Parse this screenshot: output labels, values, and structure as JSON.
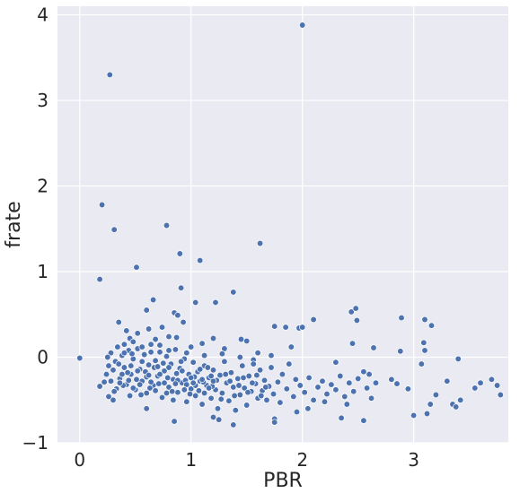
{
  "chart_data": {
    "type": "scatter",
    "title": "",
    "xlabel": "PBR",
    "ylabel": "frate",
    "xlim": [
      -0.2,
      3.85
    ],
    "ylim": [
      -1.0,
      4.1
    ],
    "xticks": [
      0,
      1,
      2,
      3
    ],
    "yticks": [
      -1,
      0,
      1,
      2,
      3,
      4
    ],
    "xtick_labels": [
      "0",
      "1",
      "2",
      "3"
    ],
    "ytick_labels": [
      "−1",
      "0",
      "1",
      "2",
      "3",
      "4"
    ],
    "grid": true,
    "background_color": "#eaeaf2",
    "grid_color": "#ffffff",
    "marker_color": "#4c72b0",
    "marker_edge_color": "#ffffff",
    "series": [
      {
        "points": [
          [
            2.0,
            3.88
          ],
          [
            0.27,
            3.3
          ],
          [
            0.2,
            1.78
          ],
          [
            0.31,
            1.49
          ],
          [
            0.78,
            1.54
          ],
          [
            1.62,
            1.33
          ],
          [
            0.9,
            1.21
          ],
          [
            1.08,
            1.13
          ],
          [
            0.51,
            1.05
          ],
          [
            0.18,
            0.91
          ],
          [
            0.91,
            0.81
          ],
          [
            0.85,
            0.52
          ],
          [
            1.04,
            0.64
          ],
          [
            0.66,
            0.67
          ],
          [
            1.22,
            0.64
          ],
          [
            1.38,
            0.76
          ],
          [
            2.1,
            0.44
          ],
          [
            2.44,
            0.53
          ],
          [
            2.48,
            0.57
          ],
          [
            2.89,
            0.46
          ],
          [
            3.1,
            0.44
          ],
          [
            3.16,
            0.37
          ],
          [
            2.49,
            0.43
          ],
          [
            0.6,
            0.55
          ],
          [
            0.88,
            0.49
          ],
          [
            0.93,
            0.41
          ],
          [
            1.45,
            0.21
          ],
          [
            1.75,
            0.36
          ],
          [
            1.85,
            0.35
          ],
          [
            1.97,
            0.34
          ],
          [
            2.0,
            0.35
          ],
          [
            2.45,
            0.16
          ],
          [
            2.64,
            0.11
          ],
          [
            2.88,
            0.07
          ],
          [
            3.09,
            0.17
          ],
          [
            3.1,
            0.08
          ],
          [
            3.07,
            -0.08
          ],
          [
            3.4,
            -0.02
          ],
          [
            0.0,
            -0.01
          ],
          [
            0.18,
            -0.34
          ],
          [
            0.35,
            0.41
          ],
          [
            0.42,
            0.31
          ],
          [
            0.45,
            0.22
          ],
          [
            0.52,
            0.28
          ],
          [
            0.62,
            0.33
          ],
          [
            0.68,
            0.21
          ],
          [
            0.74,
            0.35
          ],
          [
            0.8,
            0.24
          ],
          [
            0.87,
            0.23
          ],
          [
            1.0,
            0.12
          ],
          [
            1.1,
            0.16
          ],
          [
            1.2,
            0.22
          ],
          [
            1.3,
            0.1
          ],
          [
            1.5,
            0.19
          ],
          [
            1.6,
            0.05
          ],
          [
            1.9,
            0.12
          ],
          [
            2.3,
            -0.06
          ],
          [
            2.55,
            -0.17
          ],
          [
            2.6,
            -0.2
          ],
          [
            2.8,
            -0.26
          ],
          [
            2.85,
            -0.31
          ],
          [
            2.95,
            -0.37
          ],
          [
            3.0,
            -0.68
          ],
          [
            3.12,
            -0.66
          ],
          [
            3.15,
            -0.55
          ],
          [
            3.2,
            -0.44
          ],
          [
            3.3,
            -0.28
          ],
          [
            3.35,
            -0.55
          ],
          [
            3.38,
            -0.58
          ],
          [
            3.42,
            -0.5
          ],
          [
            3.55,
            -0.36
          ],
          [
            3.6,
            -0.3
          ],
          [
            3.7,
            -0.26
          ],
          [
            3.75,
            -0.33
          ],
          [
            3.78,
            -0.44
          ],
          [
            2.62,
            -0.48
          ],
          [
            2.55,
            -0.74
          ],
          [
            2.4,
            -0.55
          ],
          [
            2.35,
            -0.71
          ],
          [
            2.2,
            -0.52
          ],
          [
            2.05,
            -0.6
          ],
          [
            1.95,
            -0.64
          ],
          [
            1.75,
            -0.72
          ],
          [
            1.75,
            -0.76
          ],
          [
            1.38,
            -0.79
          ],
          [
            1.25,
            -0.73
          ],
          [
            1.2,
            -0.7
          ],
          [
            0.85,
            -0.75
          ],
          [
            0.6,
            -0.6
          ],
          [
            0.45,
            -0.45
          ],
          [
            0.3,
            -0.5
          ],
          [
            0.26,
            -0.46
          ],
          [
            0.33,
            -0.37
          ],
          [
            0.22,
            -0.29
          ],
          [
            0.24,
            -0.2
          ],
          [
            0.26,
            -0.1
          ],
          [
            0.28,
            0.05
          ],
          [
            0.3,
            -0.15
          ],
          [
            0.32,
            -0.05
          ],
          [
            0.34,
            0.12
          ],
          [
            0.36,
            -0.25
          ],
          [
            0.38,
            0.02
          ],
          [
            0.4,
            -0.12
          ],
          [
            0.42,
            -0.32
          ],
          [
            0.44,
            0.08
          ],
          [
            0.46,
            -0.2
          ],
          [
            0.48,
            -0.02
          ],
          [
            0.5,
            -0.38
          ],
          [
            0.52,
            0.1
          ],
          [
            0.54,
            -0.14
          ],
          [
            0.56,
            -0.28
          ],
          [
            0.58,
            0.03
          ],
          [
            0.6,
            -0.42
          ],
          [
            0.62,
            -0.09
          ],
          [
            0.64,
            0.15
          ],
          [
            0.66,
            -0.33
          ],
          [
            0.68,
            -0.04
          ],
          [
            0.7,
            -0.22
          ],
          [
            0.72,
            0.06
          ],
          [
            0.74,
            -0.47
          ],
          [
            0.76,
            -0.16
          ],
          [
            0.78,
            0.01
          ],
          [
            0.8,
            -0.35
          ],
          [
            0.82,
            -0.08
          ],
          [
            0.84,
            -0.26
          ],
          [
            0.86,
            0.09
          ],
          [
            0.88,
            -0.41
          ],
          [
            0.9,
            -0.13
          ],
          [
            0.92,
            -0.3
          ],
          [
            0.94,
            -0.02
          ],
          [
            0.96,
            -0.52
          ],
          [
            0.98,
            -0.2
          ],
          [
            1.0,
            -0.37
          ],
          [
            1.02,
            -0.06
          ],
          [
            1.04,
            -0.45
          ],
          [
            1.06,
            -0.17
          ],
          [
            1.08,
            -0.28
          ],
          [
            1.1,
            -0.55
          ],
          [
            1.12,
            -0.1
          ],
          [
            1.14,
            -0.33
          ],
          [
            1.16,
            -0.24
          ],
          [
            1.18,
            -0.48
          ],
          [
            1.2,
            -0.15
          ],
          [
            1.22,
            -0.38
          ],
          [
            1.24,
            -0.6
          ],
          [
            1.26,
            -0.21
          ],
          [
            1.28,
            -0.42
          ],
          [
            1.3,
            -0.05
          ],
          [
            1.32,
            -0.3
          ],
          [
            1.34,
            -0.51
          ],
          [
            1.36,
            -0.18
          ],
          [
            1.38,
            -0.35
          ],
          [
            1.4,
            -0.62
          ],
          [
            1.42,
            -0.25
          ],
          [
            1.44,
            -0.44
          ],
          [
            1.46,
            -0.1
          ],
          [
            1.48,
            -0.36
          ],
          [
            1.5,
            -0.56
          ],
          [
            1.52,
            -0.22
          ],
          [
            1.54,
            -0.4
          ],
          [
            1.56,
            -0.03
          ],
          [
            1.58,
            -0.31
          ],
          [
            1.6,
            -0.48
          ],
          [
            1.62,
            -0.15
          ],
          [
            1.64,
            -0.39
          ],
          [
            1.66,
            -0.27
          ],
          [
            1.68,
            -0.5
          ],
          [
            1.7,
            -0.34
          ],
          [
            1.72,
            -0.12
          ],
          [
            1.74,
            -0.43
          ],
          [
            1.78,
            -0.29
          ],
          [
            1.8,
            -0.53
          ],
          [
            1.82,
            -0.2
          ],
          [
            1.86,
            -0.37
          ],
          [
            1.88,
            -0.08
          ],
          [
            1.92,
            -0.46
          ],
          [
            1.94,
            -0.26
          ],
          [
            1.98,
            -0.33
          ],
          [
            2.02,
            -0.41
          ],
          [
            2.06,
            -0.24
          ],
          [
            2.1,
            -0.5
          ],
          [
            2.14,
            -0.35
          ],
          [
            2.18,
            -0.28
          ],
          [
            2.22,
            -0.43
          ],
          [
            2.26,
            -0.32
          ],
          [
            2.3,
            -0.38
          ],
          [
            2.34,
            -0.22
          ],
          [
            2.38,
            -0.46
          ],
          [
            2.42,
            -0.3
          ],
          [
            2.46,
            -0.4
          ],
          [
            2.5,
            -0.25
          ],
          [
            2.58,
            -0.36
          ],
          [
            2.66,
            -0.3
          ],
          [
            0.25,
            0.0
          ],
          [
            0.28,
            -0.28
          ],
          [
            0.31,
            -0.4
          ],
          [
            0.35,
            -0.08
          ],
          [
            0.39,
            -0.33
          ],
          [
            0.43,
            -0.18
          ],
          [
            0.47,
            0.04
          ],
          [
            0.51,
            -0.26
          ],
          [
            0.55,
            -0.44
          ],
          [
            0.59,
            -0.17
          ],
          [
            0.63,
            -0.36
          ],
          [
            0.67,
            -0.12
          ],
          [
            0.71,
            -0.31
          ],
          [
            0.75,
            -0.07
          ],
          [
            0.79,
            -0.24
          ],
          [
            0.83,
            -0.4
          ],
          [
            0.87,
            -0.19
          ],
          [
            0.91,
            -0.05
          ],
          [
            0.95,
            -0.27
          ],
          [
            0.99,
            -0.43
          ],
          [
            1.03,
            -0.23
          ],
          [
            1.07,
            -0.39
          ],
          [
            1.11,
            -0.29
          ],
          [
            1.15,
            -0.12
          ],
          [
            1.19,
            -0.34
          ],
          [
            1.23,
            -0.27
          ],
          [
            1.27,
            -0.49
          ],
          [
            1.31,
            -0.2
          ],
          [
            1.35,
            -0.28
          ],
          [
            1.39,
            -0.45
          ],
          [
            1.43,
            -0.33
          ],
          [
            1.47,
            -0.24
          ],
          [
            1.51,
            -0.41
          ],
          [
            1.55,
            -0.3
          ],
          [
            1.59,
            -0.21
          ],
          [
            1.63,
            -0.45
          ],
          [
            1.67,
            -0.35
          ],
          [
            0.36,
            -0.3
          ],
          [
            0.4,
            0.05
          ],
          [
            0.44,
            -0.27
          ],
          [
            0.48,
            -0.36
          ],
          [
            0.52,
            -0.16
          ],
          [
            0.56,
            -0.05
          ],
          [
            0.6,
            -0.23
          ],
          [
            0.64,
            -0.29
          ],
          [
            0.68,
            -0.39
          ],
          [
            0.72,
            -0.2
          ],
          [
            0.76,
            -0.3
          ],
          [
            0.8,
            -0.12
          ],
          [
            0.84,
            -0.5
          ],
          [
            0.88,
            -0.27
          ],
          [
            0.92,
            -0.16
          ],
          [
            0.96,
            -0.32
          ],
          [
            1.0,
            -0.24
          ],
          [
            1.04,
            -0.33
          ],
          [
            1.08,
            -0.14
          ],
          [
            1.12,
            -0.42
          ],
          [
            1.16,
            -0.36
          ],
          [
            1.2,
            -0.28
          ],
          [
            0.38,
            -0.2
          ],
          [
            0.46,
            -0.1
          ],
          [
            0.54,
            -0.32
          ],
          [
            0.62,
            -0.21
          ],
          [
            0.7,
            -0.11
          ],
          [
            0.78,
            -0.42
          ],
          [
            0.86,
            -0.31
          ],
          [
            0.94,
            -0.38
          ],
          [
            1.02,
            -0.3
          ],
          [
            1.1,
            -0.26
          ],
          [
            1.18,
            -0.22
          ],
          [
            0.4,
            0.15
          ],
          [
            0.48,
            0.18
          ],
          [
            0.56,
            0.12
          ],
          [
            0.64,
            0.06
          ],
          [
            0.72,
            0.14
          ],
          [
            0.8,
            0.08
          ],
          [
            0.96,
            0.05
          ],
          [
            1.12,
            0.02
          ],
          [
            1.28,
            0.04
          ],
          [
            1.44,
            0.0
          ],
          [
            1.56,
            -0.08
          ],
          [
            1.72,
            0.02
          ]
        ]
      }
    ]
  }
}
